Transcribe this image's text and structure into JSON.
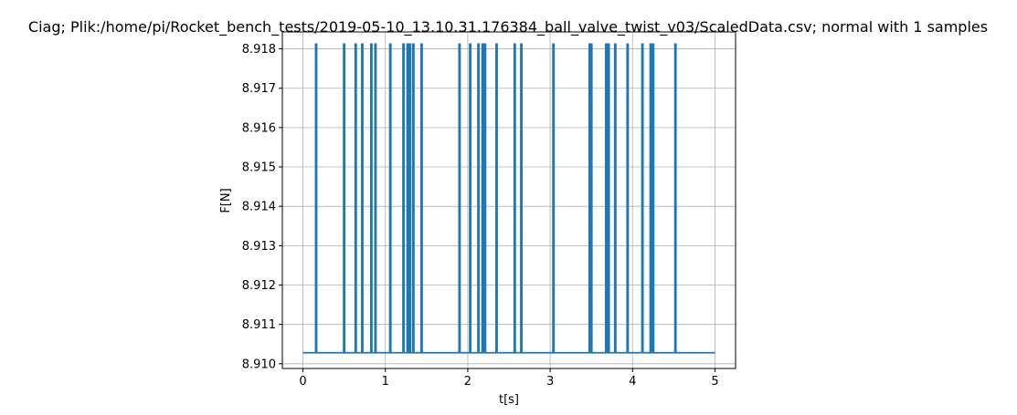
{
  "chart_data": {
    "type": "line",
    "title": "Ciag; Plik:/home/pi/Rocket_bench_tests/2019-05-10_13.10.31.176384_ball_valve_twist_v03/ScaledData.csv; normal with 1 samples",
    "xlabel": "t[s]",
    "ylabel": "F[N]",
    "xlim": [
      -0.25,
      5.25
    ],
    "ylim": [
      8.90988,
      8.91843
    ],
    "xticks": [
      0,
      1,
      2,
      3,
      4,
      5
    ],
    "xtick_labels": [
      "0",
      "1",
      "2",
      "3",
      "4",
      "5"
    ],
    "yticks": [
      8.91,
      8.911,
      8.912,
      8.913,
      8.914,
      8.915,
      8.916,
      8.917,
      8.918
    ],
    "ytick_labels": [
      "8.910",
      "8.911",
      "8.912",
      "8.913",
      "8.914",
      "8.915",
      "8.916",
      "8.917",
      "8.918"
    ],
    "grid": true,
    "series": [
      {
        "color": "#1f77b4",
        "baseline": 8.91028,
        "spike_value": 8.91812,
        "x_range": [
          0,
          5
        ],
        "spike_times": [
          0.16,
          0.5,
          0.64,
          0.72,
          0.83,
          0.88,
          1.06,
          1.22,
          1.27,
          1.3,
          1.34,
          1.44,
          1.9,
          2.03,
          2.13,
          2.18,
          2.21,
          2.35,
          2.57,
          2.65,
          3.04,
          3.48,
          3.5,
          3.68,
          3.71,
          3.79,
          3.94,
          4.12,
          4.22,
          4.24,
          4.25,
          4.52
        ]
      }
    ]
  }
}
